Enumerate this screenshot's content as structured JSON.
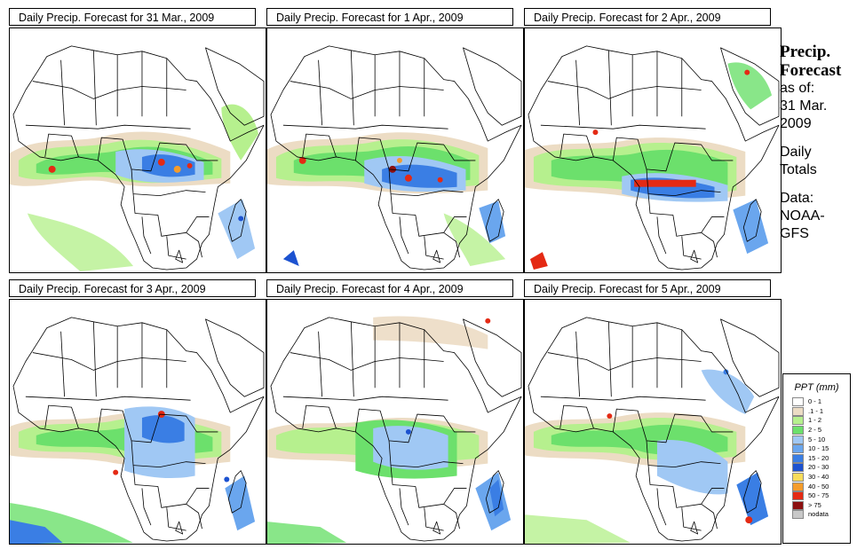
{
  "panels": [
    {
      "title": "Daily Precip. Forecast for  31 Mar., 2009"
    },
    {
      "title": "Daily Precip. Forecast for  1 Apr., 2009"
    },
    {
      "title": "Daily Precip. Forecast for  2 Apr., 2009"
    },
    {
      "title": "Daily Precip. Forecast for  3 Apr., 2009"
    },
    {
      "title": "Daily Precip. Forecast for  4 Apr., 2009"
    },
    {
      "title": "Daily Precip. Forecast for  5 Apr., 2009"
    }
  ],
  "side": {
    "heading_1": "Precip.",
    "heading_2": "Forecast",
    "as_of": "as of:",
    "date_1": "31 Mar.",
    "date_2": "2009",
    "daily": "Daily",
    "totals": "Totals",
    "data_label": "Data:",
    "source_1": "NOAA-",
    "source_2": "GFS"
  },
  "legend": {
    "title": "PPT (mm)",
    "items": [
      {
        "label": "0 - 1",
        "color": "#ffffff"
      },
      {
        "label": ".1 - 1",
        "color": "#ecdcc4"
      },
      {
        "label": "1 - 2",
        "color": "#b6f08e"
      },
      {
        "label": "2 - 5",
        "color": "#6ce06c"
      },
      {
        "label": "5 - 10",
        "color": "#a0c8f4"
      },
      {
        "label": "10 - 15",
        "color": "#6aa6ee"
      },
      {
        "label": "15 - 20",
        "color": "#3a7ee4"
      },
      {
        "label": "20 - 30",
        "color": "#1c52d0"
      },
      {
        "label": "30 - 40",
        "color": "#f8dc5a"
      },
      {
        "label": "40 - 50",
        "color": "#f49c2c"
      },
      {
        "label": "50 - 75",
        "color": "#e42a14"
      },
      {
        "label": "> 75",
        "color": "#8c1010"
      },
      {
        "label": "nodata",
        "color": "#c8c8c8"
      }
    ]
  }
}
